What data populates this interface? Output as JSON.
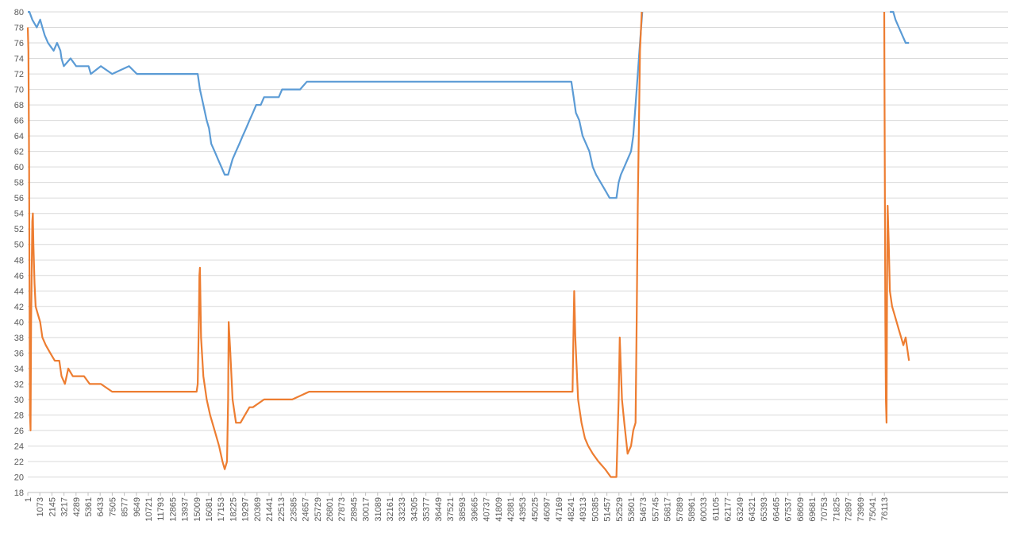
{
  "chart_data": {
    "type": "line",
    "title": "",
    "xlabel": "",
    "ylabel": "",
    "ylim": [
      18,
      80
    ],
    "y_ticks": [
      18,
      20,
      22,
      24,
      26,
      28,
      30,
      32,
      34,
      36,
      38,
      40,
      42,
      44,
      46,
      48,
      50,
      52,
      54,
      56,
      58,
      60,
      62,
      64,
      66,
      68,
      70,
      72,
      74,
      76,
      78,
      80
    ],
    "x_range": [
      1,
      77185
    ],
    "x_ticks": [
      1,
      1073,
      2145,
      3217,
      4289,
      5361,
      6433,
      7505,
      8577,
      9649,
      10721,
      11793,
      12865,
      13937,
      15009,
      16081,
      17153,
      18225,
      19297,
      20369,
      21441,
      22513,
      23585,
      24657,
      25729,
      26801,
      27873,
      28945,
      30017,
      31089,
      32161,
      33233,
      34305,
      35377,
      36449,
      37521,
      38593,
      39665,
      40737,
      41809,
      42881,
      43953,
      45025,
      46097,
      47169,
      48241,
      49313,
      50385,
      51457,
      52529,
      53601,
      54673,
      55745,
      56817,
      57889,
      58961,
      60033,
      61105,
      62177,
      63249,
      64321,
      65393,
      66465,
      67537,
      68609,
      69681,
      70753,
      71825,
      72897,
      73969,
      75041,
      76113
    ],
    "grid": "horizontal",
    "legend": "none",
    "series": [
      {
        "color": "#5b9bd5",
        "segments": [
          [
            [
              1,
              80
            ],
            [
              150,
              80
            ],
            [
              400,
              79
            ],
            [
              800,
              78
            ],
            [
              1100,
              79
            ],
            [
              1300,
              78
            ],
            [
              1500,
              77
            ],
            [
              1800,
              76
            ],
            [
              2300,
              75
            ],
            [
              2600,
              76
            ],
            [
              2900,
              75
            ],
            [
              3000,
              74
            ],
            [
              3200,
              73
            ],
            [
              3800,
              74
            ],
            [
              4300,
              73
            ],
            [
              5000,
              73
            ],
            [
              5400,
              73
            ],
            [
              5600,
              72
            ],
            [
              6500,
              73
            ],
            [
              7500,
              72
            ],
            [
              9000,
              73
            ],
            [
              9700,
              72
            ],
            [
              10700,
              72
            ],
            [
              11500,
              72
            ],
            [
              13000,
              72
            ],
            [
              14000,
              72
            ],
            [
              14500,
              72
            ],
            [
              15100,
              72
            ],
            [
              15300,
              70
            ],
            [
              15600,
              68
            ],
            [
              15900,
              66
            ],
            [
              16100,
              65
            ],
            [
              16300,
              63
            ],
            [
              16600,
              62
            ],
            [
              16900,
              61
            ],
            [
              17200,
              60
            ],
            [
              17500,
              59
            ],
            [
              17800,
              59
            ],
            [
              18000,
              60
            ],
            [
              18200,
              61
            ],
            [
              18500,
              62
            ],
            [
              18800,
              63
            ],
            [
              19100,
              64
            ],
            [
              19400,
              65
            ],
            [
              19700,
              66
            ],
            [
              20000,
              67
            ],
            [
              20300,
              68
            ],
            [
              20700,
              68
            ],
            [
              21000,
              69
            ],
            [
              21800,
              69
            ],
            [
              22300,
              69
            ],
            [
              22600,
              70
            ],
            [
              23500,
              70
            ],
            [
              24200,
              70
            ],
            [
              24800,
              71
            ],
            [
              30000,
              71
            ],
            [
              40000,
              71
            ],
            [
              47000,
              71
            ],
            [
              48300,
              71
            ],
            [
              48500,
              69
            ],
            [
              48700,
              67
            ],
            [
              49000,
              66
            ],
            [
              49300,
              64
            ],
            [
              49600,
              63
            ],
            [
              49900,
              62
            ],
            [
              50200,
              60
            ],
            [
              50500,
              59
            ],
            [
              50900,
              58
            ],
            [
              51300,
              57
            ],
            [
              51700,
              56
            ],
            [
              52300,
              56
            ],
            [
              52500,
              58
            ],
            [
              52700,
              59
            ],
            [
              53000,
              60
            ],
            [
              53300,
              61
            ],
            [
              53600,
              62
            ],
            [
              53800,
              64
            ],
            [
              54000,
              68
            ],
            [
              54200,
              72
            ],
            [
              54400,
              76
            ],
            [
              54600,
              80
            ]
          ],
          [
            [
              76600,
              80
            ],
            [
              76900,
              80
            ],
            [
              77100,
              79
            ],
            [
              77400,
              78
            ],
            [
              77700,
              77
            ],
            [
              78000,
              76
            ],
            [
              78300,
              76
            ]
          ]
        ]
      },
      {
        "color": "#ed7d31",
        "segments": [
          [
            [
              1,
              78
            ],
            [
              60,
              75
            ],
            [
              120,
              60
            ],
            [
              160,
              40
            ],
            [
              200,
              28
            ],
            [
              250,
              26
            ],
            [
              300,
              40
            ],
            [
              400,
              53
            ],
            [
              450,
              54
            ],
            [
              500,
              50
            ],
            [
              600,
              45
            ],
            [
              700,
              42
            ],
            [
              900,
              41
            ],
            [
              1100,
              40
            ],
            [
              1300,
              38
            ],
            [
              1600,
              37
            ],
            [
              2000,
              36
            ],
            [
              2400,
              35
            ],
            [
              2800,
              35
            ],
            [
              3000,
              33
            ],
            [
              3300,
              32
            ],
            [
              3600,
              34
            ],
            [
              4000,
              33
            ],
            [
              4500,
              33
            ],
            [
              5000,
              33
            ],
            [
              5500,
              32
            ],
            [
              6500,
              32
            ],
            [
              7500,
              31
            ],
            [
              9000,
              31
            ],
            [
              10500,
              31
            ],
            [
              12000,
              31
            ],
            [
              13500,
              31
            ],
            [
              15000,
              31
            ],
            [
              15100,
              32
            ],
            [
              15200,
              40
            ],
            [
              15250,
              46
            ],
            [
              15300,
              47
            ],
            [
              15400,
              38
            ],
            [
              15600,
              33
            ],
            [
              15900,
              30
            ],
            [
              16200,
              28
            ],
            [
              16600,
              26
            ],
            [
              17000,
              24
            ],
            [
              17300,
              22
            ],
            [
              17500,
              21
            ],
            [
              17700,
              22
            ],
            [
              17800,
              30
            ],
            [
              17850,
              40
            ],
            [
              18000,
              36
            ],
            [
              18200,
              30
            ],
            [
              18500,
              27
            ],
            [
              18900,
              27
            ],
            [
              19300,
              28
            ],
            [
              19700,
              29
            ],
            [
              20000,
              29
            ],
            [
              21000,
              30
            ],
            [
              22500,
              30
            ],
            [
              23500,
              30
            ],
            [
              25000,
              31
            ],
            [
              30000,
              31
            ],
            [
              40000,
              31
            ],
            [
              45000,
              31
            ],
            [
              48400,
              31
            ],
            [
              48500,
              40
            ],
            [
              48550,
              44
            ],
            [
              48650,
              38
            ],
            [
              48900,
              30
            ],
            [
              49200,
              27
            ],
            [
              49500,
              25
            ],
            [
              49800,
              24
            ],
            [
              50200,
              23
            ],
            [
              50700,
              22
            ],
            [
              51300,
              21
            ],
            [
              51800,
              20
            ],
            [
              52300,
              20
            ],
            [
              52500,
              30
            ],
            [
              52600,
              38
            ],
            [
              52800,
              30
            ],
            [
              53000,
              27
            ],
            [
              53300,
              23
            ],
            [
              53600,
              24
            ],
            [
              53800,
              26
            ],
            [
              54000,
              27
            ],
            [
              54100,
              40
            ],
            [
              54200,
              55
            ],
            [
              54300,
              65
            ],
            [
              54400,
              75
            ],
            [
              54550,
              80
            ]
          ],
          [
            [
              76100,
              80
            ],
            [
              76150,
              60
            ],
            [
              76200,
              40
            ],
            [
              76250,
              30
            ],
            [
              76300,
              27
            ],
            [
              76350,
              45
            ],
            [
              76400,
              55
            ],
            [
              76500,
              50
            ],
            [
              76600,
              44
            ],
            [
              76800,
              42
            ],
            [
              77000,
              41
            ],
            [
              77200,
              40
            ],
            [
              77400,
              39
            ],
            [
              77600,
              38
            ],
            [
              77800,
              37
            ],
            [
              78000,
              38
            ],
            [
              78200,
              36
            ],
            [
              78300,
              35
            ]
          ]
        ]
      }
    ]
  }
}
